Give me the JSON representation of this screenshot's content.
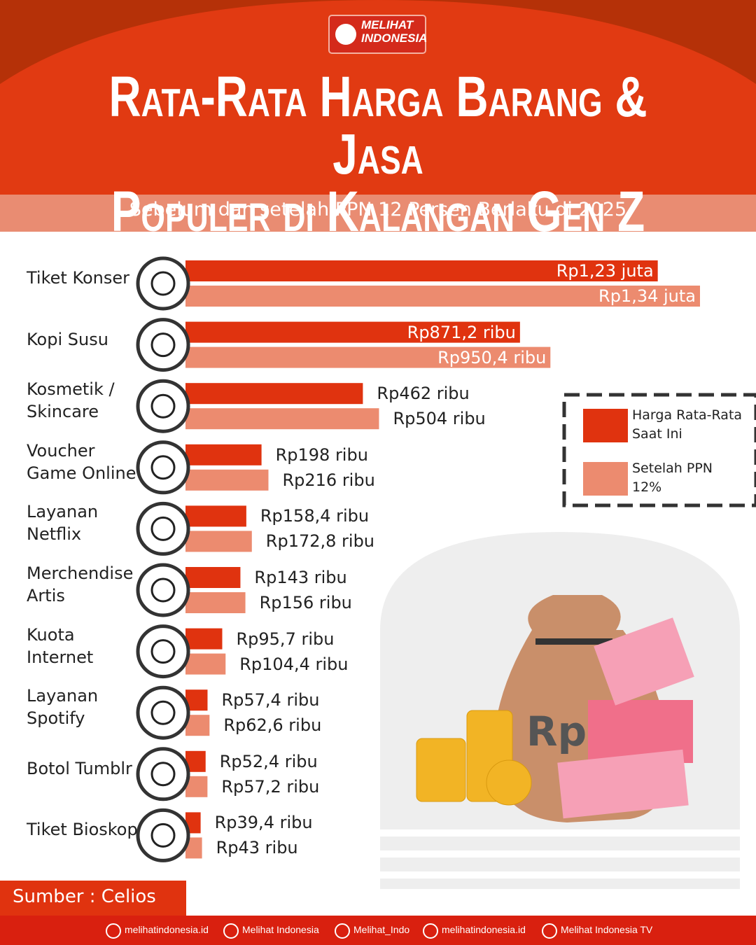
{
  "brand": "MELIHAT\nINDONESIA",
  "chart_data": {
    "type": "bar",
    "orientation": "horizontal",
    "title": "Rata-Rata Harga Barang & Jasa\nPopuler di Kalangan Gen Z",
    "subtitle": "Sebelum dan setelah PPN 12 Persen Berlaku di 2025",
    "categories": [
      "Tiket Konser",
      "Kopi Susu",
      "Kosmetik /\nSkincare",
      "Voucher\nGame Online",
      "Layanan\nNetflix",
      "Merchendise\nArtis",
      "Kuota\nInternet",
      "Layanan\nSpotify",
      "Botol Tumblr",
      "Tiket Bioskop"
    ],
    "series": [
      {
        "name": "Harga Rata-Rata\nSaat Ini",
        "color": "#e0330f",
        "values": [
          1230000,
          871200,
          462000,
          198000,
          158400,
          143000,
          95700,
          57400,
          52400,
          39400
        ],
        "value_labels": [
          "Rp1,23 juta",
          "Rp871,2 ribu",
          "Rp462 ribu",
          "Rp198 ribu",
          "Rp158,4 ribu",
          "Rp143 ribu",
          "Rp95,7 ribu",
          "Rp57,4 ribu",
          "Rp52,4 ribu",
          "Rp39,4 ribu"
        ]
      },
      {
        "name": "Setelah PPN\n12%",
        "color": "#ec8b6f",
        "values": [
          1340000,
          950400,
          504000,
          216000,
          172800,
          156000,
          104400,
          62600,
          57200,
          43000
        ],
        "value_labels": [
          "Rp1,34 juta",
          "Rp950,4 ribu",
          "Rp504 ribu",
          "Rp216 ribu",
          "Rp172,8 ribu",
          "Rp156 ribu",
          "Rp104,4 ribu",
          "Rp62,6 ribu",
          "Rp57,2 ribu",
          "Rp43 ribu"
        ]
      }
    ],
    "source": "Sumber : Celios"
  },
  "footer": [
    "melihatindonesia.id",
    "Melihat Indonesia",
    "Melihat_Indo",
    "melihatindonesia.id",
    "Melihat Indonesia TV"
  ]
}
